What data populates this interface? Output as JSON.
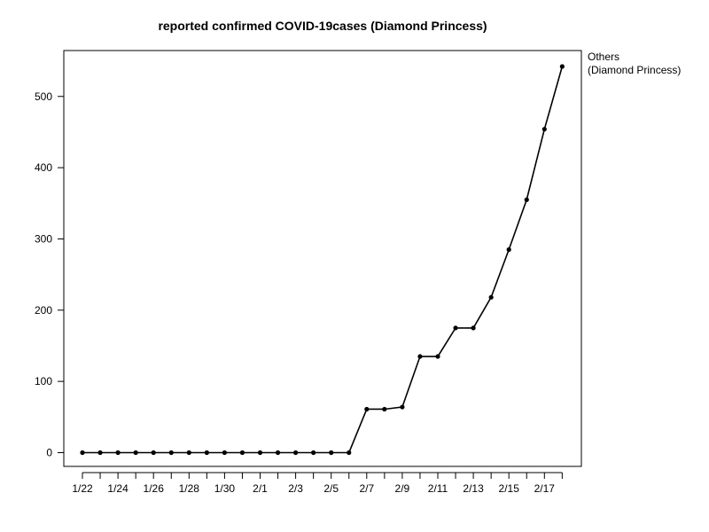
{
  "chart_data": {
    "type": "line",
    "title": "reported confirmed COVID-19cases (Diamond Princess)",
    "xlabel": "",
    "ylabel": "",
    "x": [
      "1/22",
      "1/23",
      "1/24",
      "1/25",
      "1/26",
      "1/27",
      "1/28",
      "1/29",
      "1/30",
      "1/31",
      "2/1",
      "2/2",
      "2/3",
      "2/4",
      "2/5",
      "2/6",
      "2/7",
      "2/8",
      "2/9",
      "2/10",
      "2/11",
      "2/12",
      "2/13",
      "2/14",
      "2/15",
      "2/16",
      "2/17",
      "2/18"
    ],
    "x_tick_labels": [
      "1/22",
      "",
      "1/24",
      "",
      "1/26",
      "",
      "1/28",
      "",
      "1/30",
      "",
      "2/1",
      "",
      "2/3",
      "",
      "2/5",
      "",
      "2/7",
      "",
      "2/9",
      "",
      "2/11",
      "",
      "2/13",
      "",
      "2/15",
      "",
      "2/17",
      ""
    ],
    "series": [
      {
        "name": "",
        "values": [
          0,
          0,
          0,
          0,
          0,
          0,
          0,
          0,
          0,
          0,
          0,
          0,
          0,
          0,
          0,
          0,
          61,
          61,
          64,
          135,
          135,
          175,
          175,
          218,
          285,
          355,
          454,
          542
        ],
        "color": "#000000"
      }
    ],
    "yticks": [
      0,
      100,
      200,
      300,
      400,
      500
    ],
    "ylim": [
      -20,
      562
    ],
    "legend": {
      "position": "outside-top-right",
      "lines": [
        "Others",
        "(Diamond Princess)"
      ]
    },
    "grid": false
  }
}
